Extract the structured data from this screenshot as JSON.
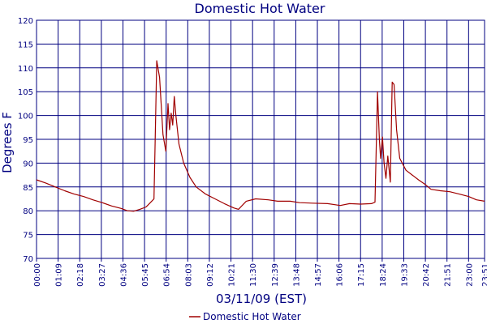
{
  "chart_data": {
    "type": "line",
    "title": "Domestic Hot Water",
    "xlabel": "03/11/09 (EST)",
    "ylabel": "Degrees F",
    "ylim": [
      70,
      120
    ],
    "yticks": [
      "70",
      "75",
      "80",
      "85",
      "90",
      "95",
      "100",
      "105",
      "110",
      "115",
      "120"
    ],
    "xticks": [
      "00:00",
      "01:09",
      "02:18",
      "03:27",
      "04:36",
      "05:45",
      "06:54",
      "08:03",
      "09:12",
      "10:21",
      "11:30",
      "12:39",
      "13:48",
      "14:57",
      "16:06",
      "17:15",
      "18:24",
      "19:33",
      "20:42",
      "21:51",
      "23:00",
      "23:51"
    ],
    "grid": true,
    "legend_position": "bottom-center",
    "colors": {
      "series": "#a00000",
      "grid": "#000080",
      "text": "#000080"
    },
    "series": [
      {
        "name": "Domestic Hot Water",
        "points": [
          [
            "00:00",
            86.5
          ],
          [
            "00:30",
            85.8
          ],
          [
            "01:00",
            85.0
          ],
          [
            "01:30",
            84.2
          ],
          [
            "02:00",
            83.5
          ],
          [
            "02:30",
            83.0
          ],
          [
            "03:00",
            82.3
          ],
          [
            "03:30",
            81.7
          ],
          [
            "04:00",
            81.0
          ],
          [
            "04:30",
            80.5
          ],
          [
            "04:50",
            80.0
          ],
          [
            "05:10",
            79.9
          ],
          [
            "05:30",
            80.3
          ],
          [
            "05:50",
            80.8
          ],
          [
            "06:05",
            81.8
          ],
          [
            "06:15",
            82.5
          ],
          [
            "06:19",
            95.0
          ],
          [
            "06:24",
            111.5
          ],
          [
            "06:33",
            108.0
          ],
          [
            "06:44",
            96.0
          ],
          [
            "06:53",
            92.5
          ],
          [
            "07:00",
            102.5
          ],
          [
            "07:05",
            97.0
          ],
          [
            "07:10",
            100.5
          ],
          [
            "07:15",
            98.0
          ],
          [
            "07:20",
            104.0
          ],
          [
            "07:25",
            100.0
          ],
          [
            "07:35",
            94.0
          ],
          [
            "07:50",
            90.0
          ],
          [
            "08:10",
            87.0
          ],
          [
            "08:30",
            85.0
          ],
          [
            "09:00",
            83.5
          ],
          [
            "09:30",
            82.5
          ],
          [
            "10:00",
            81.5
          ],
          [
            "10:30",
            80.6
          ],
          [
            "10:45",
            80.3
          ],
          [
            "11:10",
            82.0
          ],
          [
            "11:40",
            82.5
          ],
          [
            "12:20",
            82.3
          ],
          [
            "12:50",
            82.0
          ],
          [
            "13:30",
            82.0
          ],
          [
            "14:00",
            81.7
          ],
          [
            "14:40",
            81.6
          ],
          [
            "15:30",
            81.5
          ],
          [
            "16:10",
            81.1
          ],
          [
            "16:40",
            81.5
          ],
          [
            "17:15",
            81.4
          ],
          [
            "17:50",
            81.5
          ],
          [
            "18:01",
            81.8
          ],
          [
            "18:09",
            105.0
          ],
          [
            "18:15",
            95.0
          ],
          [
            "18:19",
            91.0
          ],
          [
            "18:25",
            95.5
          ],
          [
            "18:30",
            90.0
          ],
          [
            "18:36",
            86.8
          ],
          [
            "18:42",
            91.5
          ],
          [
            "18:50",
            86.0
          ],
          [
            "18:56",
            107.0
          ],
          [
            "19:02",
            106.5
          ],
          [
            "19:10",
            97.0
          ],
          [
            "19:20",
            91.0
          ],
          [
            "19:40",
            88.5
          ],
          [
            "20:00",
            87.5
          ],
          [
            "20:20",
            86.5
          ],
          [
            "20:42",
            85.5
          ],
          [
            "21:00",
            84.5
          ],
          [
            "21:30",
            84.2
          ],
          [
            "22:00",
            84.0
          ],
          [
            "22:30",
            83.5
          ],
          [
            "23:00",
            83.0
          ],
          [
            "23:25",
            82.3
          ],
          [
            "23:51",
            82.0
          ]
        ]
      }
    ]
  }
}
